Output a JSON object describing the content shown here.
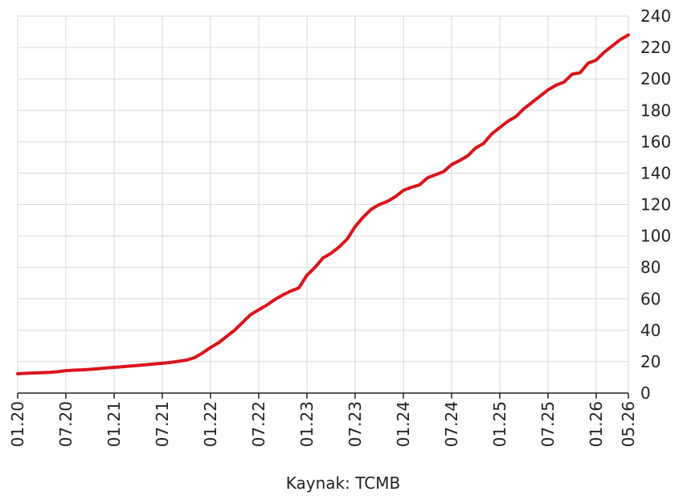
{
  "chart_data": {
    "type": "line",
    "source": "Kaynak: TCMB",
    "categories": [
      "01.20",
      null,
      null,
      null,
      null,
      null,
      "07.20",
      null,
      null,
      null,
      null,
      null,
      "01.21",
      null,
      null,
      null,
      null,
      null,
      "07.21",
      null,
      null,
      null,
      null,
      null,
      "01.22",
      null,
      null,
      null,
      null,
      null,
      "07.22",
      null,
      null,
      null,
      null,
      null,
      "01.23",
      null,
      null,
      null,
      null,
      null,
      "07.23",
      null,
      null,
      null,
      null,
      null,
      "01.24",
      null,
      null,
      null,
      null,
      null,
      "07.24",
      null,
      null,
      null,
      null,
      null,
      "01.25",
      null,
      null,
      null,
      null,
      null,
      "07.25",
      null,
      null,
      null,
      null,
      null,
      "01.26",
      null,
      null,
      null,
      "05.26"
    ],
    "series": [
      {
        "name": null,
        "color": "#d9141c",
        "values": [
          12.3,
          12.6,
          12.8,
          13,
          13.2,
          13.6,
          14.3,
          14.6,
          14.8,
          15.1,
          15.5,
          16,
          16.4,
          16.8,
          17.2,
          17.6,
          18,
          18.5,
          19,
          19.5,
          20.2,
          21,
          22.5,
          25.5,
          29,
          32,
          36,
          40,
          45,
          50,
          53,
          56,
          59.5,
          62.5,
          65,
          67,
          75,
          80,
          86,
          89,
          93,
          98,
          106,
          112,
          117,
          120,
          122,
          125,
          129,
          131,
          132.5,
          137,
          139,
          141,
          145.5,
          148,
          151,
          156,
          159,
          165,
          169,
          173,
          176,
          181,
          185,
          189,
          193,
          196,
          198,
          203,
          204,
          210,
          212,
          217,
          221,
          225,
          228
        ]
      }
    ],
    "ylim": [
      0,
      240
    ],
    "yticks": [
      0,
      20,
      40,
      60,
      80,
      100,
      120,
      140,
      160,
      180,
      200,
      220,
      240
    ],
    "grid": true
  }
}
